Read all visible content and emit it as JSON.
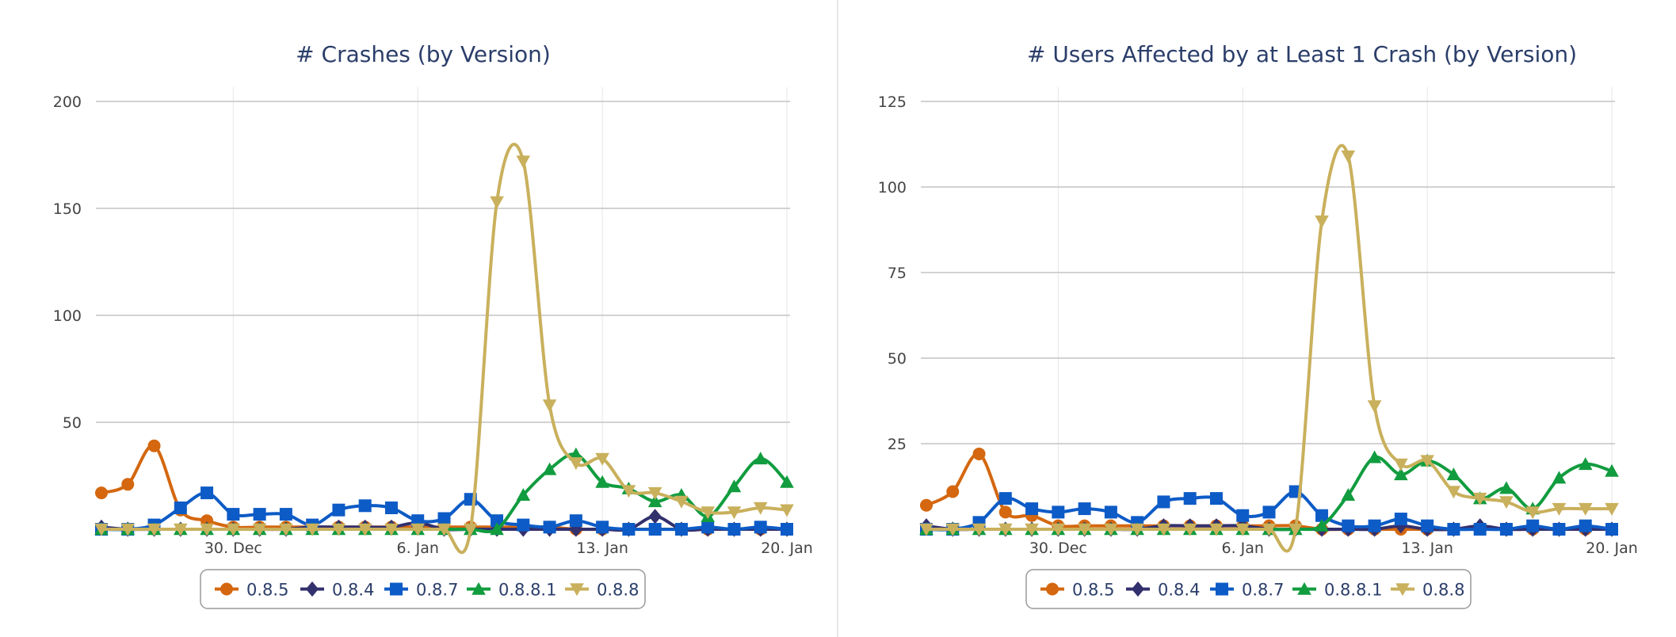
{
  "chart_data": [
    {
      "type": "line",
      "title": "# Crashes (by Version)",
      "ylim": [
        0,
        200
      ],
      "y_ticks": [
        "50",
        "100",
        "150",
        "200"
      ],
      "x_ticks": [
        {
          "index": 5,
          "label": "30. Dec"
        },
        {
          "index": 12,
          "label": "6. Jan"
        },
        {
          "index": 19,
          "label": "13. Jan"
        },
        {
          "index": 26,
          "label": "20. Jan"
        }
      ],
      "legend_position": "bottom-center",
      "grid": true,
      "series": [
        {
          "name": "0.8.5",
          "color": "#d4670f",
          "marker": "circle",
          "values": [
            17,
            21,
            39,
            9,
            4,
            1,
            1,
            1,
            1,
            1,
            1,
            1,
            1,
            1,
            1,
            1,
            1,
            1,
            0,
            0,
            0,
            0,
            0,
            0,
            0,
            0,
            0
          ]
        },
        {
          "name": "0.8.4",
          "color": "#33306e",
          "marker": "diamond",
          "values": [
            1,
            0,
            0,
            0,
            0,
            0,
            0,
            0,
            1,
            1,
            1,
            1,
            3,
            0,
            0,
            0,
            0,
            0,
            0,
            0,
            0,
            6,
            0,
            0,
            0,
            0,
            0
          ]
        },
        {
          "name": "0.8.7",
          "color": "#0d5bc6",
          "marker": "square",
          "values": [
            0,
            0,
            2,
            10,
            17,
            7,
            7,
            7,
            2,
            9,
            11,
            10,
            4,
            5,
            14,
            4,
            2,
            1,
            4,
            1,
            0,
            0,
            0,
            1,
            0,
            1,
            0
          ]
        },
        {
          "name": "0.8.8.1",
          "color": "#119c3f",
          "marker": "triangle",
          "values": [
            0,
            0,
            0,
            0,
            0,
            0,
            0,
            0,
            0,
            0,
            0,
            0,
            0,
            0,
            0,
            0,
            16,
            28,
            35,
            22,
            19,
            13,
            16,
            6,
            20,
            33,
            22
          ]
        },
        {
          "name": "0.8.8",
          "color": "#c9b05c",
          "marker": "triangle-down",
          "values": [
            0,
            0,
            0,
            0,
            0,
            0,
            0,
            0,
            0,
            0,
            0,
            0,
            0,
            0,
            0,
            153,
            172,
            58,
            31,
            33,
            18,
            17,
            13,
            8,
            8,
            10,
            9
          ]
        }
      ]
    },
    {
      "type": "line",
      "title": "# Users Affected by at Least 1 Crash (by Version)",
      "ylim": [
        0,
        125
      ],
      "y_ticks": [
        "25",
        "50",
        "75",
        "100",
        "125"
      ],
      "x_ticks": [
        {
          "index": 5,
          "label": "30. Dec"
        },
        {
          "index": 12,
          "label": "6. Jan"
        },
        {
          "index": 19,
          "label": "13. Jan"
        },
        {
          "index": 26,
          "label": "20. Jan"
        }
      ],
      "legend_position": "bottom-center",
      "grid": true,
      "series": [
        {
          "name": "0.8.5",
          "color": "#d4670f",
          "marker": "circle",
          "values": [
            7,
            11,
            22,
            5,
            4,
            1,
            1,
            1,
            1,
            1,
            1,
            1,
            1,
            1,
            1,
            0,
            0,
            0,
            0,
            0,
            0,
            0,
            0,
            0,
            0,
            0,
            0
          ]
        },
        {
          "name": "0.8.4",
          "color": "#33306e",
          "marker": "diamond",
          "values": [
            1,
            0,
            0,
            0,
            0,
            0,
            0,
            0,
            0,
            1,
            1,
            1,
            1,
            0,
            0,
            0,
            0,
            0,
            1,
            0,
            0,
            1,
            0,
            0,
            0,
            0,
            0
          ]
        },
        {
          "name": "0.8.7",
          "color": "#0d5bc6",
          "marker": "square",
          "values": [
            0,
            0,
            2,
            9,
            6,
            5,
            6,
            5,
            2,
            8,
            9,
            9,
            4,
            5,
            11,
            4,
            1,
            1,
            3,
            1,
            0,
            0,
            0,
            1,
            0,
            1,
            0
          ]
        },
        {
          "name": "0.8.8.1",
          "color": "#119c3f",
          "marker": "triangle",
          "values": [
            0,
            0,
            0,
            0,
            0,
            0,
            0,
            0,
            0,
            0,
            0,
            0,
            0,
            0,
            0,
            1,
            10,
            21,
            16,
            20,
            16,
            9,
            12,
            6,
            15,
            19,
            17
          ]
        },
        {
          "name": "0.8.8",
          "color": "#c9b05c",
          "marker": "triangle-down",
          "values": [
            0,
            0,
            0,
            0,
            0,
            0,
            0,
            0,
            0,
            0,
            0,
            0,
            0,
            0,
            0,
            90,
            109,
            36,
            19,
            20,
            11,
            9,
            8,
            5,
            6,
            6,
            6
          ]
        }
      ]
    }
  ]
}
